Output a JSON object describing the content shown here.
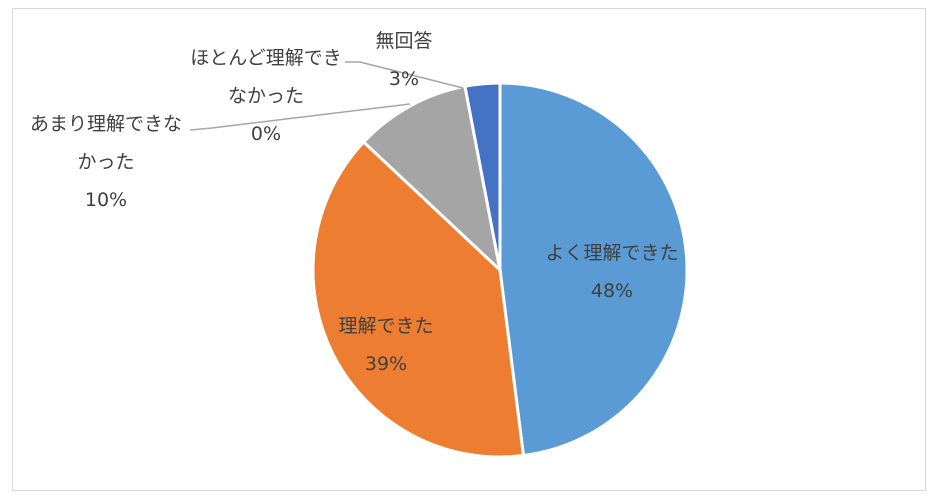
{
  "chart_data": {
    "type": "pie",
    "title": "",
    "start_angle": "top, clockwise",
    "slices": [
      {
        "label_lines": [
          "よく理解できた"
        ],
        "value": 48,
        "pct_label": "48%",
        "color": "#5B9BD5"
      },
      {
        "label_lines": [
          "理解できた"
        ],
        "value": 39,
        "pct_label": "39%",
        "color": "#ED7D31"
      },
      {
        "label_lines": [
          "あまり理解できな",
          "かった"
        ],
        "value": 10,
        "pct_label": "10%",
        "color": "#A5A5A5"
      },
      {
        "label_lines": [
          "ほとんど理解でき",
          "なかった"
        ],
        "value": 0,
        "pct_label": "0%",
        "color": "#FFC000"
      },
      {
        "label_lines": [
          "無回答"
        ],
        "value": 3,
        "pct_label": "3%",
        "color": "#4472C4"
      }
    ],
    "legend": "none",
    "data_labels": "category and percentage"
  }
}
